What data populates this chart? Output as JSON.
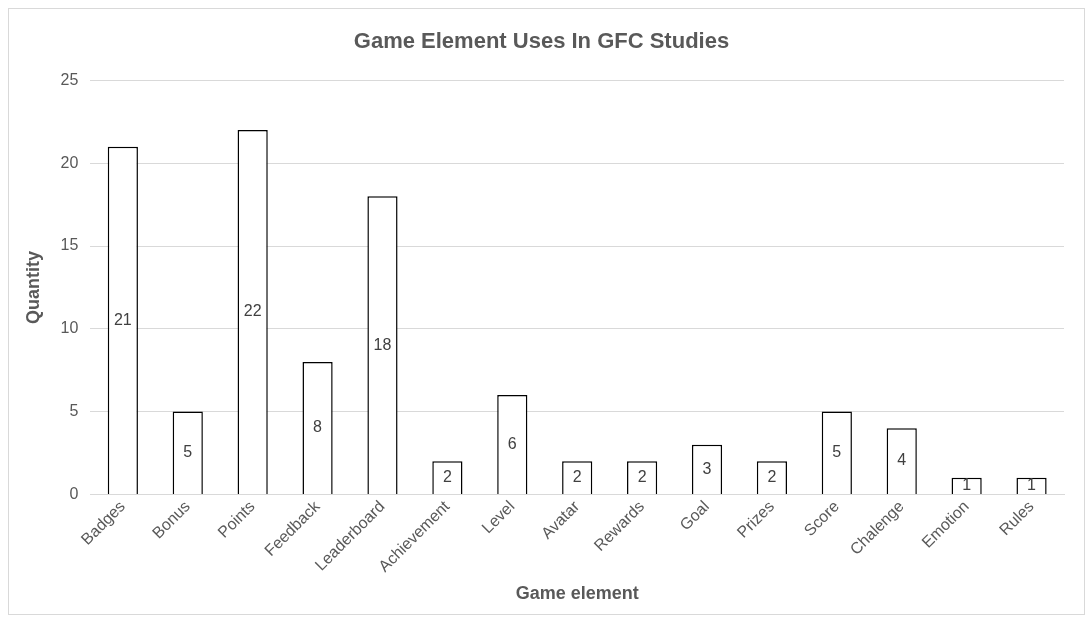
{
  "chart_data": {
    "type": "bar",
    "title": "Game Element Uses In GFC Studies",
    "xlabel": "Game element",
    "ylabel": "Quantity",
    "categories": [
      "Badges",
      "Bonus",
      "Points",
      "Feedback",
      "Leaderboard",
      "Achievement",
      "Level",
      "Avatar",
      "Rewards",
      "Goal",
      "Prizes",
      "Score",
      "Chalenge",
      "Emotion",
      "Rules"
    ],
    "values": [
      21,
      5,
      22,
      8,
      18,
      2,
      6,
      2,
      2,
      3,
      2,
      5,
      4,
      1,
      1
    ],
    "color": "#ffffff",
    "ylim": [
      0,
      25
    ],
    "yticks": [
      0,
      5,
      10,
      15,
      20,
      25
    ],
    "grid": "y",
    "data_labels": true,
    "legend": false
  }
}
